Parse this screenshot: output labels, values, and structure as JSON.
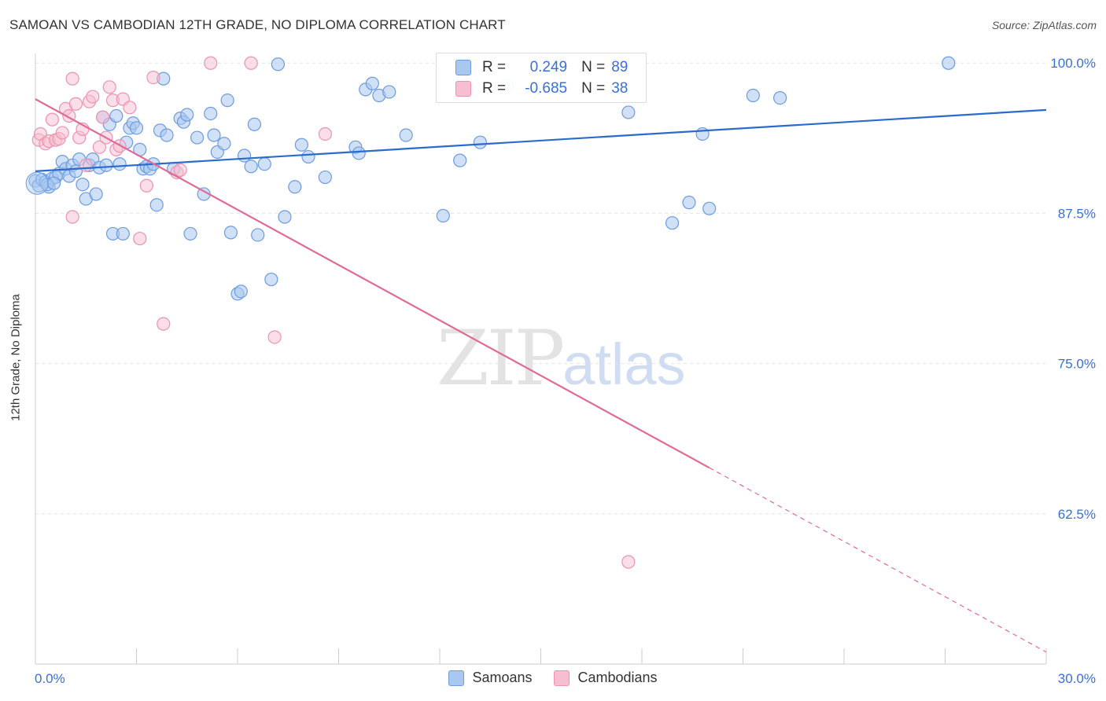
{
  "header": {
    "title": "SAMOAN VS CAMBODIAN 12TH GRADE, NO DIPLOMA CORRELATION CHART",
    "source": "Source: ZipAtlas.com"
  },
  "legend": {
    "samoans": {
      "r_label": "R =",
      "r_value": "0.249",
      "n_label": "N =",
      "n_value": "89"
    },
    "cambodians": {
      "r_label": "R =",
      "r_value": "-0.685",
      "n_label": "N =",
      "n_value": "38"
    }
  },
  "bottom_legend": {
    "samoans": "Samoans",
    "cambodians": "Cambodians"
  },
  "watermark": {
    "zip": "ZIP",
    "atlas": "atlas"
  },
  "colors": {
    "samoans_fill": "#a9c8f0",
    "samoans_stroke": "#6c9be0",
    "samoans_line": "#2a6bcc",
    "cambodians_fill": "#f7bdd0",
    "cambodians_stroke": "#ec93b1",
    "cambodians_line": "#e06a98",
    "tick_label": "#3a6fd8",
    "grid": "#e3e3e3"
  },
  "chart_data": {
    "type": "scatter",
    "title": "SAMOAN VS CAMBODIAN 12TH GRADE, NO DIPLOMA CORRELATION CHART",
    "xlabel": "",
    "ylabel": "12th Grade, No Diploma",
    "xlim": [
      0,
      30
    ],
    "ylim": [
      50,
      100.8
    ],
    "x_tick_labels": [
      {
        "value": 0,
        "label": "0.0%"
      },
      {
        "value": 30,
        "label": "30.0%"
      }
    ],
    "y_tick_labels": [
      {
        "value": 100,
        "label": "100.0%"
      },
      {
        "value": 87.5,
        "label": "87.5%"
      },
      {
        "value": 75,
        "label": "75.0%"
      },
      {
        "value": 62.5,
        "label": "62.5%"
      }
    ],
    "grid": true,
    "legend_position": "top-center",
    "series": [
      {
        "name": "Samoans",
        "r": 0.249,
        "n": 89,
        "trend": {
          "x": [
            0,
            30
          ],
          "y": [
            91.0,
            96.1
          ]
        },
        "points": [
          [
            0.0,
            90.2
          ],
          [
            0.1,
            89.8
          ],
          [
            0.2,
            90.3
          ],
          [
            0.3,
            90.1
          ],
          [
            0.4,
            89.7
          ],
          [
            0.5,
            90.4
          ],
          [
            0.6,
            90.5
          ],
          [
            0.7,
            90.8
          ],
          [
            0.8,
            91.8
          ],
          [
            0.9,
            91.2
          ],
          [
            1.0,
            90.6
          ],
          [
            1.1,
            91.5
          ],
          [
            1.3,
            92.0
          ],
          [
            1.4,
            89.9
          ],
          [
            1.5,
            88.7
          ],
          [
            1.6,
            91.5
          ],
          [
            1.7,
            92.0
          ],
          [
            1.8,
            89.1
          ],
          [
            1.9,
            91.3
          ],
          [
            2.0,
            95.5
          ],
          [
            2.1,
            91.5
          ],
          [
            2.2,
            94.9
          ],
          [
            2.3,
            85.8
          ],
          [
            2.4,
            95.6
          ],
          [
            2.5,
            91.6
          ],
          [
            2.6,
            85.8
          ],
          [
            2.7,
            93.4
          ],
          [
            2.8,
            94.6
          ],
          [
            2.9,
            95.0
          ],
          [
            3.0,
            94.6
          ],
          [
            3.1,
            92.8
          ],
          [
            3.2,
            91.2
          ],
          [
            3.3,
            91.4
          ],
          [
            3.4,
            91.2
          ],
          [
            3.5,
            91.6
          ],
          [
            3.6,
            88.2
          ],
          [
            3.7,
            94.4
          ],
          [
            3.8,
            98.7
          ],
          [
            3.9,
            94.0
          ],
          [
            4.1,
            91.2
          ],
          [
            4.3,
            95.4
          ],
          [
            4.4,
            95.1
          ],
          [
            4.5,
            95.7
          ],
          [
            4.6,
            85.8
          ],
          [
            4.8,
            93.8
          ],
          [
            5.0,
            89.1
          ],
          [
            5.2,
            95.8
          ],
          [
            5.3,
            94.0
          ],
          [
            5.4,
            92.6
          ],
          [
            5.6,
            93.3
          ],
          [
            5.7,
            96.9
          ],
          [
            5.8,
            85.9
          ],
          [
            6.0,
            80.8
          ],
          [
            6.1,
            81.0
          ],
          [
            6.2,
            92.3
          ],
          [
            6.4,
            91.4
          ],
          [
            6.5,
            94.9
          ],
          [
            6.6,
            85.7
          ],
          [
            6.8,
            91.6
          ],
          [
            7.0,
            82.0
          ],
          [
            7.2,
            99.9
          ],
          [
            7.4,
            87.2
          ],
          [
            7.7,
            89.7
          ],
          [
            7.9,
            93.2
          ],
          [
            8.1,
            92.2
          ],
          [
            8.6,
            90.5
          ],
          [
            9.5,
            93.0
          ],
          [
            9.6,
            92.5
          ],
          [
            9.8,
            97.8
          ],
          [
            10.0,
            98.3
          ],
          [
            10.2,
            97.3
          ],
          [
            10.5,
            97.6
          ],
          [
            11.0,
            94.0
          ],
          [
            12.1,
            87.3
          ],
          [
            12.6,
            91.9
          ],
          [
            13.2,
            93.4
          ],
          [
            14.0,
            98.1
          ],
          [
            15.0,
            100.0
          ],
          [
            17.6,
            95.9
          ],
          [
            18.9,
            86.7
          ],
          [
            19.4,
            88.4
          ],
          [
            19.8,
            94.1
          ],
          [
            20.0,
            87.9
          ],
          [
            21.3,
            97.3
          ],
          [
            22.1,
            97.1
          ],
          [
            27.1,
            100.0
          ],
          [
            0.35,
            89.9
          ],
          [
            0.55,
            90.0
          ],
          [
            1.2,
            91.0
          ]
        ]
      },
      {
        "name": "Cambodians",
        "r": -0.685,
        "n": 38,
        "trend": {
          "x": [
            0,
            30
          ],
          "y": [
            97.0,
            51.0
          ],
          "solid_until_x": 20.0
        },
        "points": [
          [
            0.1,
            93.6
          ],
          [
            0.15,
            94.1
          ],
          [
            0.3,
            93.3
          ],
          [
            0.4,
            93.5
          ],
          [
            0.5,
            95.3
          ],
          [
            0.6,
            93.6
          ],
          [
            0.7,
            93.7
          ],
          [
            0.8,
            94.2
          ],
          [
            0.9,
            96.2
          ],
          [
            1.0,
            95.6
          ],
          [
            1.1,
            98.7
          ],
          [
            1.2,
            96.6
          ],
          [
            1.3,
            93.8
          ],
          [
            1.4,
            94.5
          ],
          [
            1.5,
            91.5
          ],
          [
            1.6,
            96.8
          ],
          [
            1.7,
            97.2
          ],
          [
            1.9,
            93.0
          ],
          [
            2.0,
            95.5
          ],
          [
            2.2,
            98.0
          ],
          [
            2.3,
            96.9
          ],
          [
            2.4,
            92.8
          ],
          [
            2.5,
            93.1
          ],
          [
            2.6,
            97.0
          ],
          [
            2.8,
            96.3
          ],
          [
            3.1,
            85.4
          ],
          [
            3.3,
            89.8
          ],
          [
            3.5,
            98.8
          ],
          [
            3.8,
            78.3
          ],
          [
            4.2,
            90.9
          ],
          [
            4.3,
            91.1
          ],
          [
            5.2,
            100.0
          ],
          [
            6.4,
            100.0
          ],
          [
            7.1,
            77.2
          ],
          [
            8.6,
            94.1
          ],
          [
            17.6,
            58.5
          ],
          [
            1.1,
            87.2
          ],
          [
            2.1,
            93.8
          ]
        ]
      }
    ]
  }
}
